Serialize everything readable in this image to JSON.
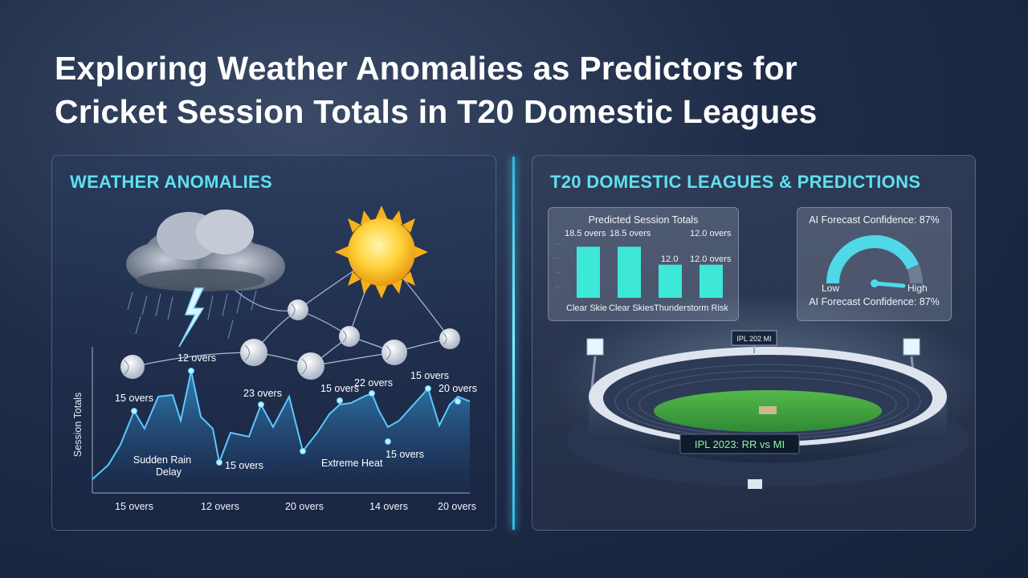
{
  "title": {
    "line1": "Exploring Weather Anomalies as Predictors for",
    "line2": "Cricket Session Totals in T20 Domestic Leagues"
  },
  "left_panel": {
    "heading": "WEATHER ANOMALIES",
    "chart": {
      "ylabel": "Session Totals",
      "point_labels": [
        "15 overs",
        "12 overs",
        "15 overs",
        "23 overs",
        "15 overs",
        "22 overs",
        "15 overs",
        "15 overs",
        "20 overs"
      ],
      "annotations": [
        "Sudden Rain Delay",
        "Extreme Heat"
      ],
      "x_ticks": [
        "15 overs",
        "12 overs",
        "20 overs",
        "14 overs",
        "20 overs"
      ]
    }
  },
  "right_panel": {
    "heading": "T20 DOMESTIC LEAGUES & PREDICTIONS",
    "chart_data": {
      "type": "bar",
      "title": "Predicted Session Totals",
      "categories": [
        "Clear Skie",
        "Clear Skies",
        "Thunderstorm Risk",
        ""
      ],
      "value_labels": [
        "18.5 overs",
        "18.5 overs",
        "12.0",
        "12.0 overs"
      ],
      "extra_label": "12.0 overs",
      "values": [
        18.5,
        18.5,
        12.0,
        12.0
      ],
      "ylim": [
        0,
        20
      ]
    },
    "gauge": {
      "title": "AI Forecast Confidence: 87%",
      "caption": "AI Forecast Confidence: 87%",
      "low_label": "Low",
      "high_label": "High",
      "value_percent": 87,
      "color": "#4fd8e8"
    },
    "stadium": {
      "top_board": "IPL 202 MI",
      "main_board": "IPL 2023: RR vs MI"
    }
  }
}
